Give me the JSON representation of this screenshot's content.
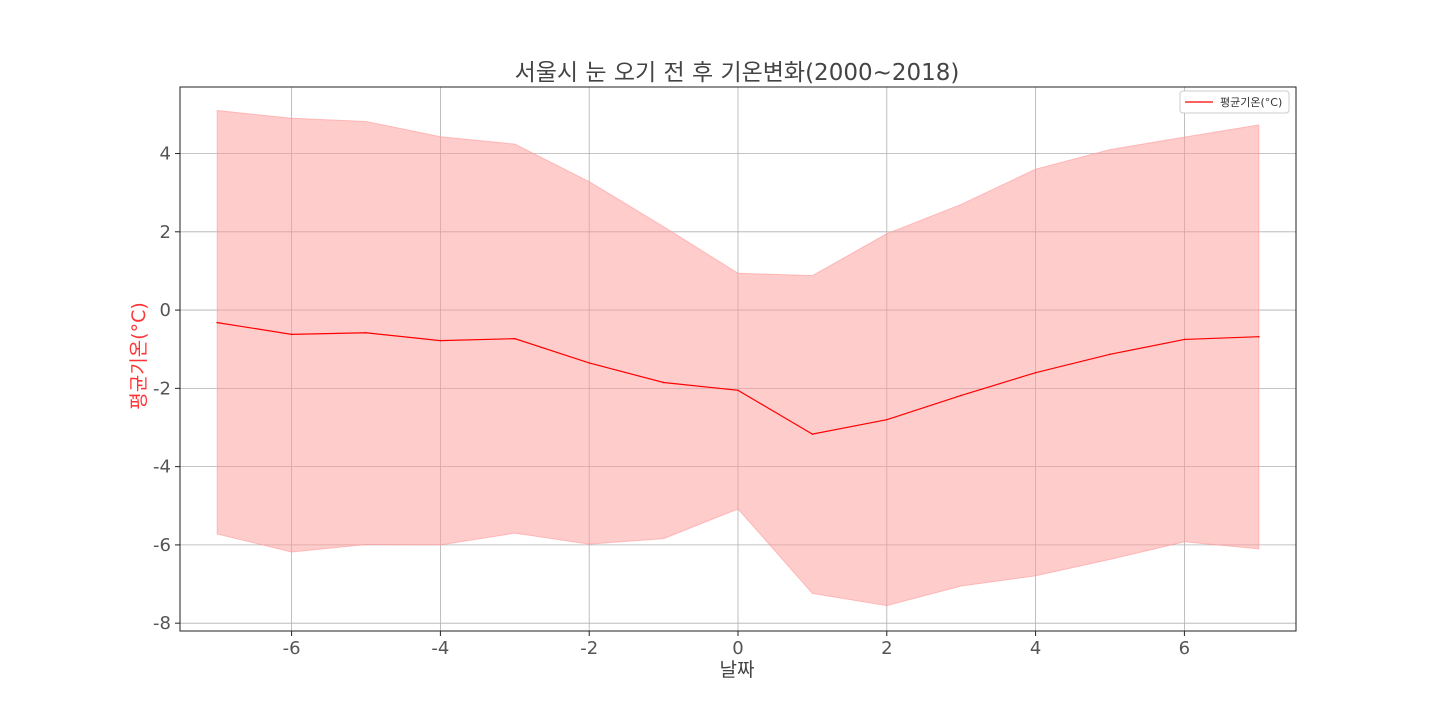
{
  "chart_data": {
    "type": "line",
    "title": "서울시 눈 오기 전 후 기온변화(2000~2018)",
    "xlabel": "날짜",
    "ylabel": "평균기온(°C)",
    "ylabel_color": "#ff3333",
    "xlim": [
      -7.5,
      7.5
    ],
    "ylim": [
      -8.2,
      5.7
    ],
    "xticks": [
      -6,
      -4,
      -2,
      0,
      2,
      4,
      6
    ],
    "yticks": [
      -8,
      -6,
      -4,
      -2,
      0,
      2,
      4
    ],
    "grid": true,
    "legend_position": "top-right",
    "x": [
      -7,
      -6,
      -5,
      -4,
      -3,
      -2,
      -1,
      0,
      1,
      2,
      3,
      4,
      5,
      6,
      7
    ],
    "series": [
      {
        "name": "평균기온(°C)",
        "color": "#ff0000",
        "values": [
          -0.32,
          -0.62,
          -0.58,
          -0.78,
          -0.73,
          -1.35,
          -1.85,
          -2.05,
          -3.17,
          -2.8,
          -2.18,
          -1.6,
          -1.13,
          -0.75,
          -0.68
        ]
      }
    ],
    "band": {
      "color": "#ff9999",
      "upper": [
        5.1,
        4.9,
        4.82,
        4.43,
        4.24,
        3.28,
        2.13,
        0.94,
        0.88,
        1.95,
        2.7,
        3.6,
        4.1,
        4.42,
        4.73
      ],
      "lower": [
        -5.72,
        -6.18,
        -5.99,
        -6.0,
        -5.7,
        -5.98,
        -5.84,
        -5.08,
        -7.24,
        -7.55,
        -7.05,
        -6.79,
        -6.37,
        -5.92,
        -6.1
      ]
    }
  }
}
